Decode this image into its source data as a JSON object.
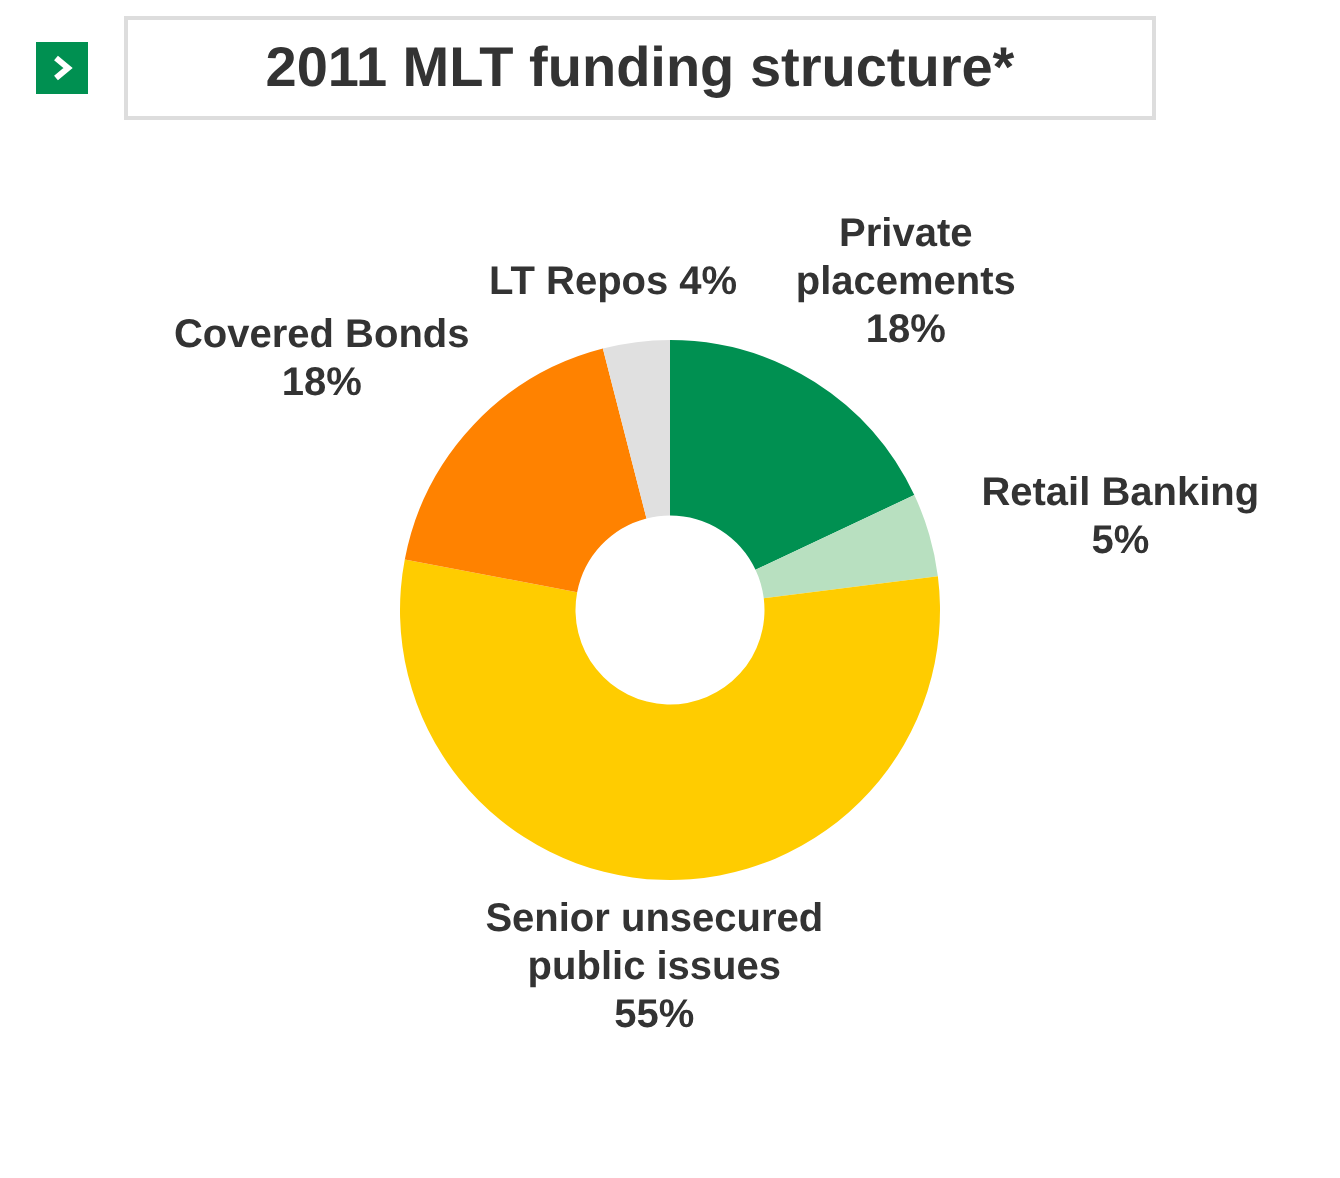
{
  "chart_data": {
    "type": "donut",
    "title": "2011 MLT funding structure*",
    "categories": [
      "Private placements",
      "Retail Banking",
      "Senior unsecured public issues",
      "Covered Bonds",
      "LT Repos"
    ],
    "values": [
      18,
      5,
      55,
      18,
      4
    ],
    "colors": [
      "#009051",
      "#b8e0c0",
      "#ffcc00",
      "#ff8200",
      "#e0e0e0"
    ],
    "value_labels": [
      "18%",
      "5%",
      "55%",
      "18%",
      "4%"
    ],
    "legend": false
  }
}
